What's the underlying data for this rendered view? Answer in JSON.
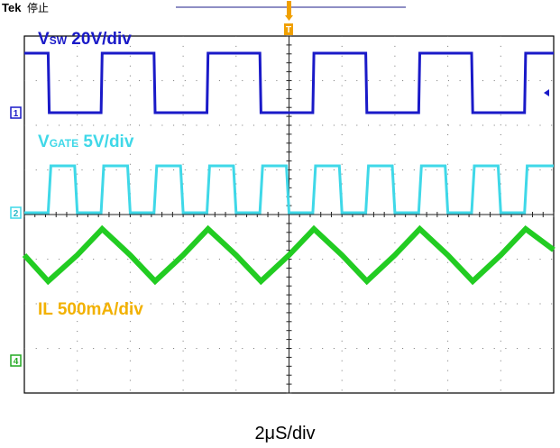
{
  "header": {
    "brand": "Tek",
    "status": "停止"
  },
  "trigger": {
    "marker_label": "T"
  },
  "channels": [
    {
      "id": "1",
      "label_main": "V",
      "label_sub": "SW",
      "label_scale": " 20V/div",
      "color": "#1a1ac8"
    },
    {
      "id": "2",
      "label_main": "V",
      "label_sub": "GATE",
      "label_scale": " 5V/div",
      "color": "#3fd8e8"
    },
    {
      "id": "4",
      "label_main": "IL 500mA/div",
      "color": "#f2b100"
    }
  ],
  "inductor_trace_color": "#22cc22",
  "x_axis_label": "2μS/div",
  "chart_data": {
    "type": "line",
    "xlabel": "2μS/div",
    "x_divisions": 10,
    "y_divisions": 8,
    "grid": true,
    "series": [
      {
        "name": "VSW 20V/div",
        "x": [
          0,
          0.45,
          0.47,
          1.45,
          1.47,
          2.45,
          2.47,
          3.45,
          3.47,
          4.45,
          4.47,
          5.45,
          5.47,
          6.45,
          6.47,
          7.45,
          7.47,
          8.45,
          8.47,
          9.45,
          9.47,
          10
        ],
        "values": [
          1,
          1,
          0,
          0,
          1,
          1,
          0,
          0,
          1,
          1,
          0,
          0,
          1,
          1,
          0,
          0,
          1,
          1,
          0,
          0,
          1,
          1
        ]
      },
      {
        "name": "VGATE 5V/div",
        "x": [
          0,
          0.45,
          0.5,
          0.95,
          1.0,
          1.45,
          1.5,
          1.95,
          2.0,
          2.45,
          2.5,
          2.95,
          3.0,
          3.45,
          3.5,
          3.95,
          4.0,
          4.45,
          4.5,
          4.95,
          5.0,
          5.45,
          5.5,
          5.95,
          6.0,
          6.45,
          6.5,
          6.95,
          7.0,
          7.45,
          7.5,
          7.95,
          8.0,
          8.45,
          8.5,
          8.95,
          9.0,
          9.45,
          9.5,
          10
        ],
        "values": [
          0,
          0,
          1,
          1,
          0,
          0,
          1,
          1,
          0,
          0,
          1,
          1,
          0,
          0,
          1,
          1,
          0,
          0,
          1,
          1,
          0,
          0,
          1,
          1,
          0,
          0,
          1,
          1,
          0,
          0,
          1,
          1,
          0,
          0,
          1,
          1,
          0,
          0,
          1,
          1
        ]
      },
      {
        "name": "IL 500mA/div",
        "x": [
          0,
          0.45,
          1.0,
          1.47,
          2.0,
          2.47,
          3.0,
          3.47,
          4.0,
          4.47,
          5.0,
          5.47,
          6.0,
          6.47,
          7.0,
          7.47,
          8.0,
          8.47,
          9.0,
          9.47,
          10
        ],
        "values": [
          0.5,
          0,
          0.5,
          1,
          0.5,
          0,
          0.5,
          1,
          0.5,
          0,
          0.5,
          1,
          0.5,
          0,
          0.5,
          1,
          0.5,
          0,
          0.5,
          1,
          0.6
        ]
      }
    ]
  }
}
